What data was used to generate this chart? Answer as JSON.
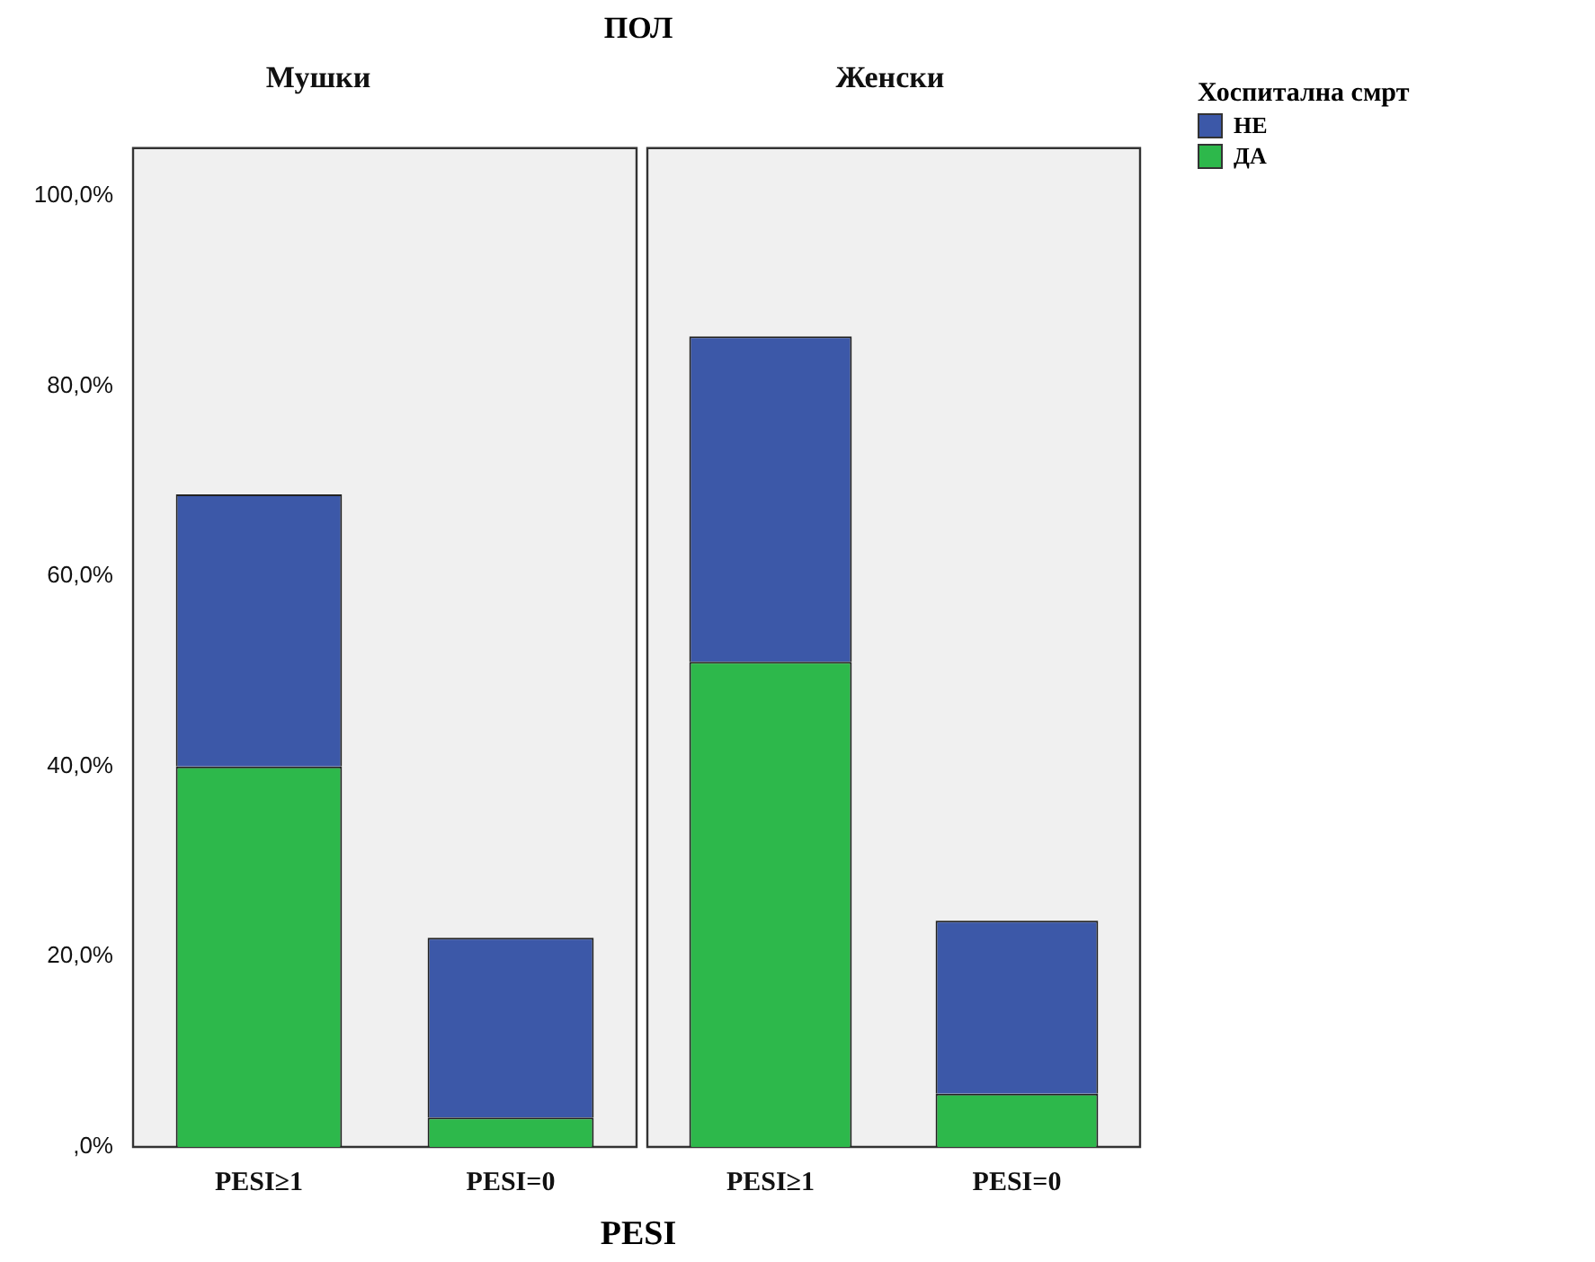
{
  "chart_data": [
    {
      "type": "bar",
      "title": "Мушки",
      "annotations": [
        "ПОЛ"
      ],
      "xlabel": "PESI",
      "stacked": true,
      "categories": [
        "PESI≥1",
        "PESI=0"
      ],
      "legend_title": "Хоспитална смрт",
      "series": [
        {
          "name": "ДА",
          "color": "#2db84b",
          "values": [
            40,
            3.1
          ]
        },
        {
          "name": "НЕ",
          "color": "#3c58a8",
          "values": [
            28.6,
            18.9
          ]
        }
      ],
      "ylim": [
        0,
        105
      ],
      "yticks": [
        {
          "value": 0,
          "label": ",0%"
        },
        {
          "value": 20,
          "label": "20,0%"
        },
        {
          "value": 40,
          "label": "40,0%"
        },
        {
          "value": 60,
          "label": "60,0%"
        },
        {
          "value": 80,
          "label": "80,0%"
        },
        {
          "value": 100,
          "label": "100,0%"
        }
      ],
      "grid": false,
      "legend": "right"
    },
    {
      "type": "bar",
      "title": "Женски",
      "stacked": true,
      "categories": [
        "PESI≥1",
        "PESI=0"
      ],
      "series": [
        {
          "color": "#2db84b",
          "values": [
            51,
            5.6
          ]
        },
        {
          "color": "#3c58a8",
          "values": [
            34.2,
            18.2
          ]
        }
      ],
      "ylim": [
        0,
        105
      ],
      "tick_labels": "x",
      "grid": false
    }
  ]
}
